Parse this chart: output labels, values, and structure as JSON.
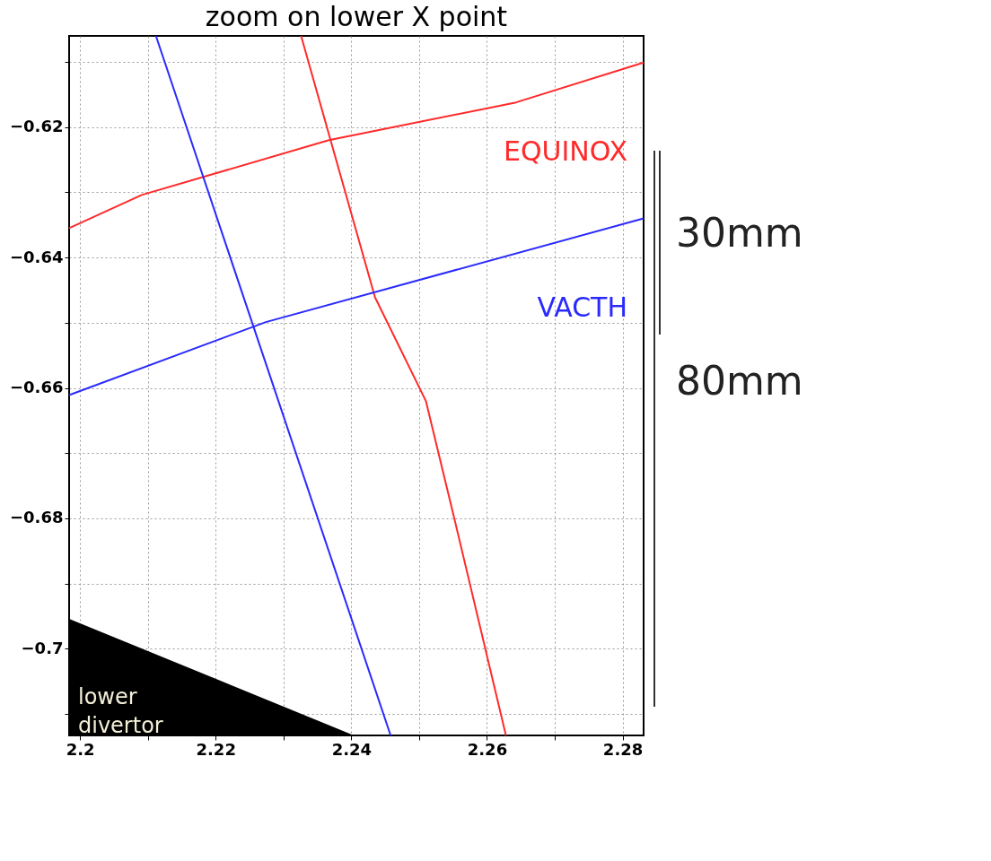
{
  "chart_data": {
    "type": "line",
    "title": "zoom on lower X point",
    "xlim": [
      2.1984,
      2.2831
    ],
    "ylim": [
      -0.7133,
      -0.606
    ],
    "xticks": [
      2.2,
      {
        "value": 2.21,
        "label": null
      },
      2.22,
      {
        "value": 2.23,
        "label": null
      },
      2.24,
      {
        "value": 2.25,
        "label": null
      },
      2.26,
      {
        "value": 2.27,
        "label": null
      },
      2.28
    ],
    "yticks": [
      {
        "value": -0.71,
        "label": null
      },
      -0.7,
      {
        "value": -0.69,
        "label": null
      },
      -0.68,
      {
        "value": -0.67,
        "label": null
      },
      -0.66,
      {
        "value": -0.65,
        "label": null
      },
      -0.64,
      {
        "value": -0.63,
        "label": null
      },
      -0.62,
      {
        "value": -0.61,
        "label": null
      }
    ],
    "grid": true,
    "line_style": "solid",
    "marker": "none",
    "series": [
      {
        "name": "EQUINOX",
        "color": "#ff2a2a",
        "x": [
          2.1984,
          2.2091,
          2.2367,
          2.2643,
          2.2831
        ],
        "values": [
          -0.6355,
          -0.6304,
          -0.622,
          -0.6162,
          -0.6101
        ]
      },
      {
        "color": "#ff2a2a",
        "x": [
          2.2326,
          2.2435,
          2.251,
          2.2553,
          2.2628
        ],
        "values": [
          -0.606,
          -0.6461,
          -0.662,
          -0.6805,
          -0.7133
        ]
      },
      {
        "name": "VACTH",
        "color": "#2a2aff",
        "x": [
          2.1984,
          2.2274,
          2.2831
        ],
        "values": [
          -0.6611,
          -0.6499,
          -0.634
        ]
      },
      {
        "color": "#2a2aff",
        "x": [
          2.2112,
          2.2458
        ],
        "values": [
          -0.606,
          -0.7133
        ]
      },
      {
        "type": "area",
        "color": "#000000",
        "x": [
          2.1984,
          2.2404
        ],
        "values": [
          -0.6954,
          -0.7133
        ]
      }
    ],
    "annotations": [
      "lower\ndivertor",
      "30mm",
      "80mm"
    ]
  }
}
